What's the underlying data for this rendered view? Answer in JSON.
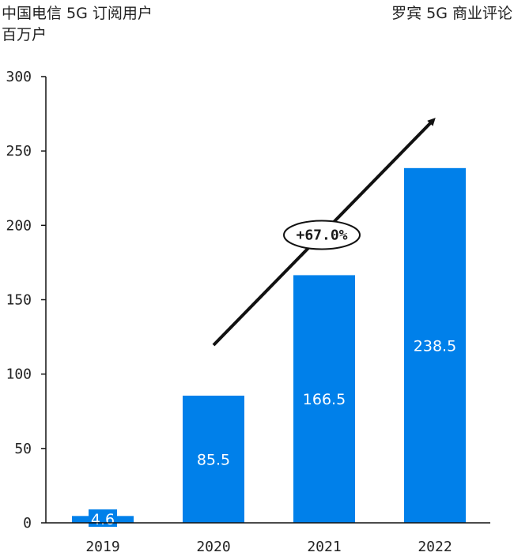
{
  "chart_data": {
    "type": "bar",
    "title": "中国电信 5G 订阅用户",
    "unit": "百万户",
    "source": "罗宾 5G 商业评论",
    "categories": [
      "2019",
      "2020",
      "2021",
      "2022"
    ],
    "values": [
      4.6,
      85.5,
      166.5,
      238.5
    ],
    "value_labels": [
      "4.6",
      "85.5",
      "166.5",
      "238.5"
    ],
    "ylim": [
      0,
      300
    ],
    "yticks": [
      0,
      50,
      100,
      150,
      200,
      250,
      300
    ],
    "grid": false,
    "bar_color": "#0080ea",
    "annotation": {
      "text": "+67.0%",
      "type": "growth-arrow"
    }
  }
}
